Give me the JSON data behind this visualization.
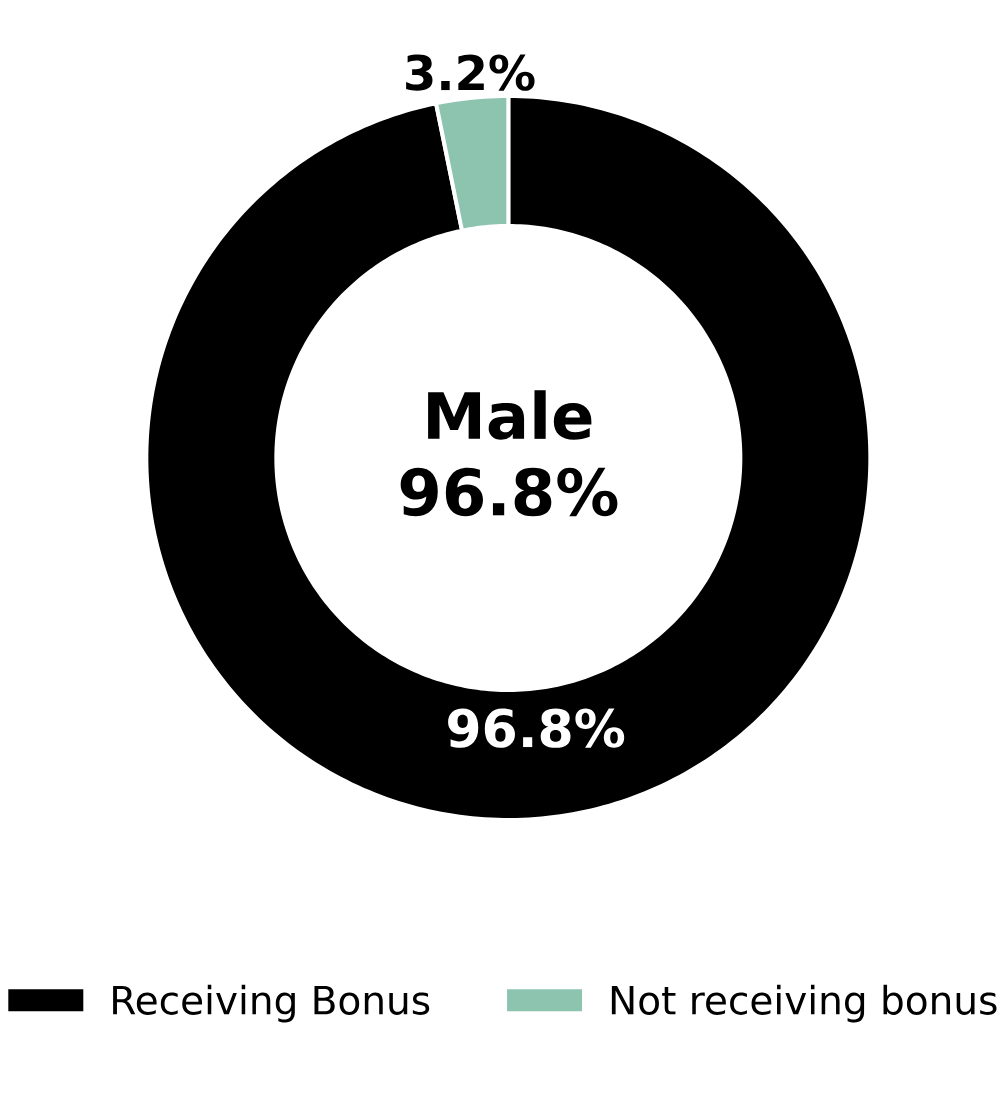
{
  "chart_data": {
    "type": "donut",
    "title": "Male",
    "annotations": [
      "96.8%"
    ],
    "categories": [
      "Receiving Bonus",
      "Not receiving bonus"
    ],
    "values": [
      96.8,
      3.2
    ],
    "colors": [
      "#000000",
      "#8dc4b0"
    ],
    "value_labels": [
      "96.8%",
      "3.2%"
    ],
    "legend": "bottom"
  }
}
